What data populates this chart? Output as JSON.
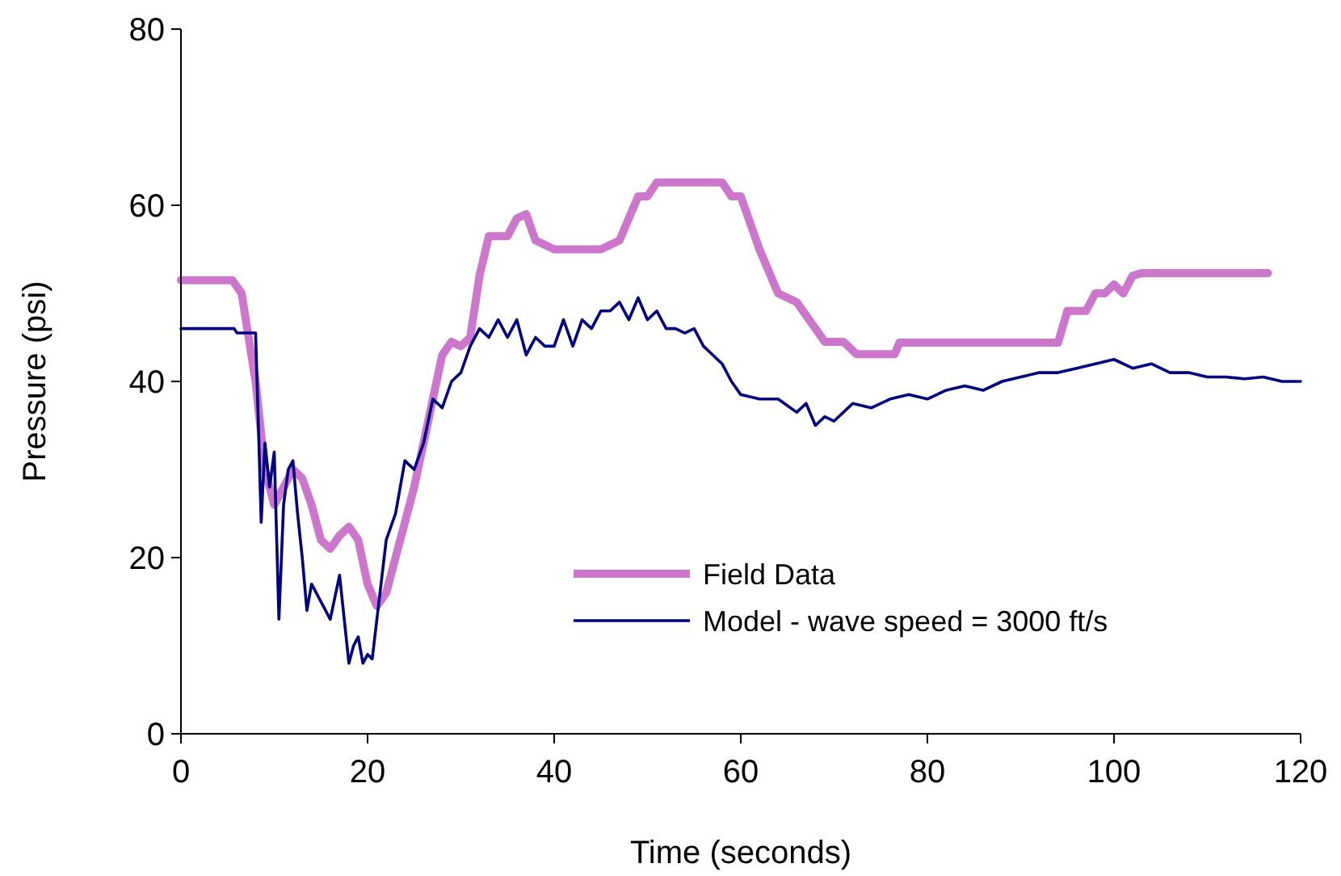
{
  "chart_data": {
    "type": "line",
    "xlabel": "Time (seconds)",
    "ylabel": "Pressure (psi)",
    "xlim": [
      0,
      120
    ],
    "xticks": [
      0,
      20,
      40,
      60,
      80,
      100,
      120
    ],
    "ylim": [
      0,
      80
    ],
    "yticks": [
      0,
      20,
      40,
      60,
      80
    ],
    "grid": false,
    "legend": "bottom right",
    "marker": "none",
    "line_style": "solid",
    "series": [
      {
        "name": "Field Data",
        "color": "#cc77cc",
        "x": [
          0,
          5.5,
          6.5,
          8,
          9,
          10,
          11,
          12,
          13,
          14,
          15,
          16,
          17,
          18,
          19,
          20,
          21,
          22,
          23,
          25,
          27,
          28,
          29,
          30,
          31,
          32,
          33,
          35,
          36,
          37,
          38,
          40,
          45,
          47,
          49,
          50,
          51,
          58,
          59,
          60,
          62,
          64,
          66,
          68,
          69,
          71,
          72.4,
          76.5,
          77,
          94,
          95,
          97,
          98,
          99,
          100,
          101,
          102,
          103,
          116.5
        ],
        "values": [
          51.5,
          51.5,
          50,
          40,
          30,
          26,
          28,
          30,
          29,
          26,
          22,
          21,
          22.5,
          23.5,
          22,
          17,
          14.5,
          16,
          20,
          28,
          38,
          43,
          44.5,
          44,
          45,
          52,
          56.5,
          56.5,
          58.5,
          59,
          56,
          55,
          55,
          56,
          61,
          61,
          62.6,
          62.6,
          61,
          61,
          55,
          50,
          49,
          46,
          44.5,
          44.5,
          43.1,
          43.1,
          44.4,
          44.4,
          48,
          48,
          50,
          50,
          51,
          50,
          52,
          52.3,
          52.3
        ]
      },
      {
        "name": "Model - wave speed = 3000 ft/s",
        "color": "#000080",
        "x": [
          0,
          5.7,
          6,
          8,
          8.3,
          8.6,
          9,
          9.5,
          10,
          10.5,
          11,
          11.5,
          12,
          12.5,
          13,
          13.5,
          14,
          15,
          16,
          17,
          17.5,
          18,
          18.5,
          19,
          19.5,
          20,
          20.5,
          21,
          22,
          23,
          24,
          25,
          26,
          27,
          28,
          29,
          30,
          31,
          32,
          33,
          34,
          35,
          36,
          37,
          38,
          39,
          40,
          41,
          42,
          43,
          44,
          45,
          46,
          47,
          48,
          49,
          50,
          51,
          52,
          53,
          54,
          55,
          56,
          57,
          58,
          59,
          60,
          62,
          64,
          66,
          67,
          68,
          69,
          70,
          72,
          74,
          76,
          78,
          80,
          82,
          84,
          86,
          88,
          90,
          92,
          94,
          96,
          98,
          100,
          102,
          104,
          106,
          108,
          110,
          112,
          114,
          116,
          118,
          120
        ],
        "values": [
          46,
          46,
          45.5,
          45.5,
          35,
          24,
          33,
          28,
          32,
          13,
          26,
          30,
          31,
          25,
          20,
          14,
          17,
          15,
          13,
          18,
          13,
          8,
          10,
          11,
          8,
          9,
          8.5,
          13,
          22,
          25,
          31,
          30,
          33,
          38,
          37,
          40,
          41,
          44,
          46,
          45,
          47,
          45,
          47,
          43,
          45,
          44,
          44,
          47,
          44,
          47,
          46,
          48,
          48,
          49,
          47,
          49.5,
          47,
          48,
          46,
          46,
          45.5,
          46,
          44,
          43,
          42,
          40,
          38.5,
          38,
          38,
          36.5,
          37.5,
          35,
          36,
          35.5,
          37.5,
          37,
          38,
          38.5,
          38,
          39,
          39.5,
          39,
          40,
          40.5,
          41,
          41,
          41.5,
          42,
          42.5,
          41.5,
          42,
          41,
          41,
          40.5,
          40.5,
          40.3,
          40.5,
          40,
          40
        ]
      }
    ]
  }
}
